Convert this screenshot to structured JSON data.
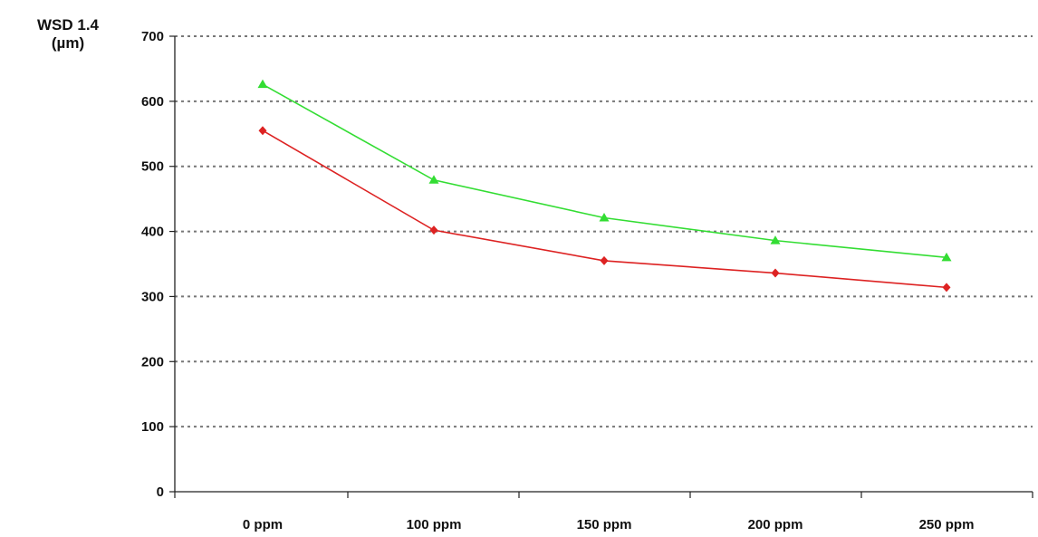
{
  "chart_data": {
    "type": "line",
    "ylabel_line1": "WSD 1.4",
    "ylabel_line2": "(µm)",
    "categories": [
      "0 ppm",
      "100 ppm",
      "150 ppm",
      "200 ppm",
      "250 ppm"
    ],
    "ylim": [
      0,
      700
    ],
    "yticks": [
      0,
      100,
      200,
      300,
      400,
      500,
      600,
      700
    ],
    "grid": true,
    "series": [
      {
        "values": [
          626,
          479,
          421,
          386,
          360
        ],
        "color": "#33dd33",
        "marker": "triangle"
      },
      {
        "values": [
          555,
          402,
          355,
          336,
          314
        ],
        "color": "#dd2222",
        "marker": "diamond"
      }
    ]
  }
}
